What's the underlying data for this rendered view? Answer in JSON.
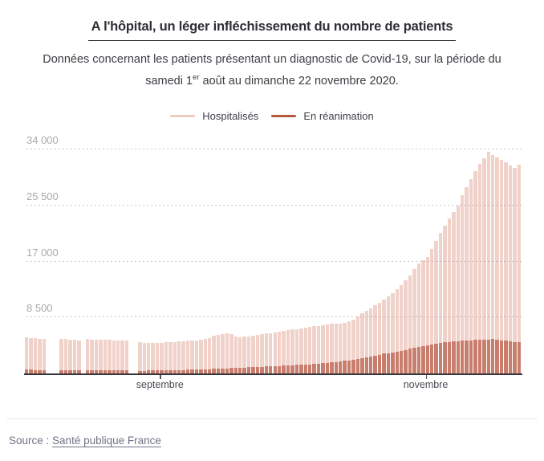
{
  "header": {
    "title": "A l'hôpital, un léger infléchissement du nombre de patients",
    "subtitle_line1": "Données concernant les patients présentant un diagnostic de Covid-19, sur la période du",
    "subtitle_line2_pre": "samedi 1",
    "subtitle_line2_sup": "er",
    "subtitle_line2_post": " août au dimanche 22 novembre 2020."
  },
  "footer": {
    "source_label": "Source :",
    "source_link": "Santé publique France"
  },
  "chart_data": {
    "type": "bar",
    "title": "A l'hôpital, un léger infléchissement du nombre de patients",
    "overlay": true,
    "n_points": 114,
    "period": "1er août 2020 – 22 novembre 2020",
    "ylim": [
      0,
      34000
    ],
    "grid": "dashed horizontal",
    "legend_position": "top center",
    "y_ticks": [
      {
        "value": 8500,
        "label": "8 500"
      },
      {
        "value": 17000,
        "label": "17 000"
      },
      {
        "value": 25500,
        "label": "25 500"
      },
      {
        "value": 34000,
        "label": "34 000"
      }
    ],
    "x_ticks": [
      {
        "index": 31,
        "label": "septembre"
      },
      {
        "index": 92,
        "label": "novembre"
      }
    ],
    "axis_color": "#34343d",
    "gridline_color": "rgba(110,110,120,0.38)",
    "series": [
      {
        "name": "Hospitalisés",
        "bar_color": "#f1d2ca",
        "legend_color": "#efccc1",
        "values": [
          5450,
          5400,
          5350,
          5300,
          5250,
          null,
          null,
          null,
          5300,
          5250,
          5150,
          5100,
          5050,
          null,
          5200,
          5150,
          5120,
          5100,
          5080,
          5060,
          5040,
          5020,
          5010,
          5000,
          null,
          null,
          4700,
          4680,
          4660,
          4650,
          4640,
          4650,
          4700,
          4750,
          4800,
          4850,
          4900,
          4950,
          5000,
          5050,
          5100,
          5200,
          5400,
          5700,
          5900,
          6000,
          6050,
          6000,
          5600,
          5500,
          5550,
          5650,
          5750,
          5850,
          5950,
          6050,
          6150,
          6250,
          6350,
          6450,
          6550,
          6650,
          6750,
          6850,
          6950,
          7050,
          7150,
          7250,
          7350,
          7450,
          7500,
          7550,
          7600,
          7700,
          7900,
          8200,
          8600,
          9100,
          9500,
          9900,
          10300,
          10700,
          11200,
          11700,
          12200,
          12800,
          13400,
          14100,
          14900,
          15800,
          16700,
          17200,
          17700,
          18900,
          20100,
          21300,
          22400,
          23500,
          24500,
          25500,
          27000,
          28300,
          29500,
          30700,
          31800,
          32700,
          33600,
          33200,
          32800,
          32400,
          32100,
          31600,
          31200,
          31700
        ]
      },
      {
        "name": "En réanimation",
        "bar_color": "#c97e6d",
        "legend_color": "#b2583b",
        "values": [
          560,
          550,
          545,
          540,
          535,
          null,
          null,
          null,
          530,
          525,
          520,
          515,
          510,
          null,
          500,
          495,
          490,
          485,
          480,
          478,
          476,
          474,
          472,
          470,
          null,
          null,
          420,
          425,
          430,
          435,
          440,
          460,
          475,
          490,
          505,
          520,
          540,
          560,
          575,
          590,
          600,
          630,
          660,
          690,
          720,
          750,
          780,
          810,
          840,
          870,
          900,
          930,
          960,
          990,
          1020,
          1050,
          1080,
          1110,
          1140,
          1170,
          1200,
          1250,
          1290,
          1330,
          1370,
          1400,
          1450,
          1500,
          1550,
          1600,
          1650,
          1720,
          1800,
          1890,
          1990,
          2100,
          2220,
          2350,
          2470,
          2600,
          2730,
          2860,
          3000,
          3100,
          3200,
          3320,
          3450,
          3590,
          3740,
          3900,
          4030,
          4150,
          4250,
          4380,
          4500,
          4600,
          4700,
          4780,
          4850,
          4900,
          4950,
          5000,
          5050,
          5080,
          5100,
          5150,
          5150,
          5200,
          5150,
          5050,
          4950,
          4850,
          4800,
          4800
        ]
      }
    ]
  }
}
